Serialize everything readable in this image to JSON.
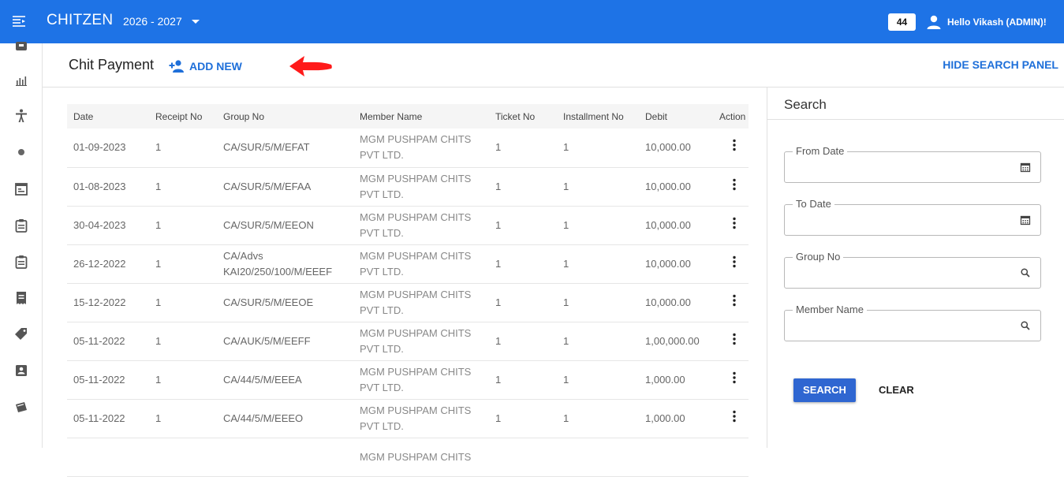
{
  "app": {
    "brand": "CHITZEN",
    "year": "2026 - 2027",
    "badge": "44",
    "greeting": "Hello Vikash (ADMIN)!"
  },
  "colors": {
    "primary": "#1e73e6",
    "link": "#1e6fd9",
    "button": "#2f66d1",
    "annotation_arrow": "#ff1a1a"
  },
  "sidebar": {
    "icons": [
      "package-icon",
      "bar-chart-icon",
      "accessibility-icon",
      "dot-icon",
      "calendar-view-icon",
      "clipboard-icon",
      "clipboard-2-icon",
      "receipt-icon",
      "tag-icon",
      "contact-card-icon",
      "ticket-icon"
    ]
  },
  "header": {
    "title": "Chit Payment",
    "add_new": "ADD NEW",
    "hide_panel": "HIDE SEARCH PANEL"
  },
  "table": {
    "columns": [
      "Date",
      "Receipt No",
      "Group No",
      "Member Name",
      "Ticket No",
      "Installment No",
      "Debit",
      "Action"
    ],
    "rows": [
      {
        "date": "01-09-2023",
        "receipt": "1",
        "group": "CA/SUR/5/M/EFAT",
        "member": "MGM PUSHPAM CHITS PVT LTD.",
        "ticket": "1",
        "installment": "1",
        "debit": "10,000.00"
      },
      {
        "date": "01-08-2023",
        "receipt": "1",
        "group": "CA/SUR/5/M/EFAA",
        "member": "MGM PUSHPAM CHITS PVT LTD.",
        "ticket": "1",
        "installment": "1",
        "debit": "10,000.00"
      },
      {
        "date": "30-04-2023",
        "receipt": "1",
        "group": "CA/SUR/5/M/EEON",
        "member": "MGM PUSHPAM CHITS PVT LTD.",
        "ticket": "1",
        "installment": "1",
        "debit": "10,000.00"
      },
      {
        "date": "26-12-2022",
        "receipt": "1",
        "group": "CA/Advs KAI20/250/100/M/EEEF",
        "member": "MGM PUSHPAM CHITS PVT LTD.",
        "ticket": "1",
        "installment": "1",
        "debit": "10,000.00"
      },
      {
        "date": "15-12-2022",
        "receipt": "1",
        "group": "CA/SUR/5/M/EEOE",
        "member": "MGM PUSHPAM CHITS PVT LTD.",
        "ticket": "1",
        "installment": "1",
        "debit": "10,000.00"
      },
      {
        "date": "05-11-2022",
        "receipt": "1",
        "group": "CA/AUK/5/M/EEFF",
        "member": "MGM PUSHPAM CHITS PVT LTD.",
        "ticket": "1",
        "installment": "1",
        "debit": "1,00,000.00"
      },
      {
        "date": "05-11-2022",
        "receipt": "1",
        "group": "CA/44/5/M/EEEA",
        "member": "MGM PUSHPAM CHITS PVT LTD.",
        "ticket": "1",
        "installment": "1",
        "debit": "1,000.00"
      },
      {
        "date": "05-11-2022",
        "receipt": "1",
        "group": "CA/44/5/M/EEEO",
        "member": "MGM PUSHPAM CHITS PVT LTD.",
        "ticket": "1",
        "installment": "1",
        "debit": "1,000.00"
      },
      {
        "date": "",
        "receipt": "",
        "group": "",
        "member": "MGM PUSHPAM CHITS",
        "ticket": "",
        "installment": "",
        "debit": ""
      }
    ]
  },
  "search_panel": {
    "title": "Search",
    "from_date_label": "From Date",
    "to_date_label": "To Date",
    "group_no_label": "Group No",
    "member_name_label": "Member Name",
    "search_button": "SEARCH",
    "clear_button": "CLEAR"
  }
}
